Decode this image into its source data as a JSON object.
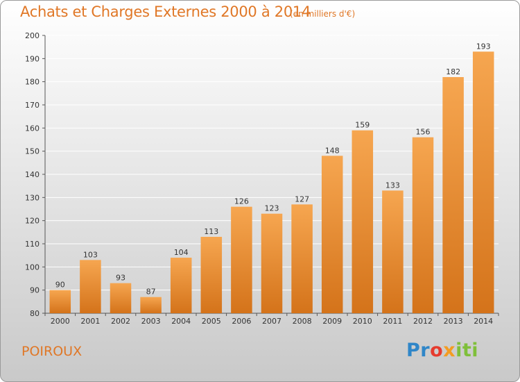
{
  "header": {
    "title": "Achats et Charges Externes 2000 à 2014",
    "subtitle": "(en milliers d'€)"
  },
  "footer": {
    "commune": "POIROUX",
    "brand": "Proxiti"
  },
  "colors": {
    "bar_light": "#f6a650",
    "bar_dark": "#d4731a",
    "title": "#e07726",
    "grid": "#ffffff",
    "axis": "#555555"
  },
  "chart_data": {
    "type": "bar",
    "categories": [
      "2000",
      "2001",
      "2002",
      "2003",
      "2004",
      "2005",
      "2006",
      "2007",
      "2008",
      "2009",
      "2010",
      "2011",
      "2012",
      "2013",
      "2014"
    ],
    "values": [
      90,
      103,
      93,
      87,
      104,
      113,
      126,
      123,
      127,
      148,
      159,
      133,
      156,
      182,
      193
    ],
    "title": "Achats et Charges Externes 2000 à 2014",
    "subtitle": "(en milliers d'€)",
    "xlabel": "",
    "ylabel": "",
    "ylim": [
      80,
      200
    ],
    "yticks": [
      80,
      90,
      100,
      110,
      120,
      130,
      140,
      150,
      160,
      170,
      180,
      190,
      200
    ],
    "grid": true,
    "legend": "none"
  }
}
